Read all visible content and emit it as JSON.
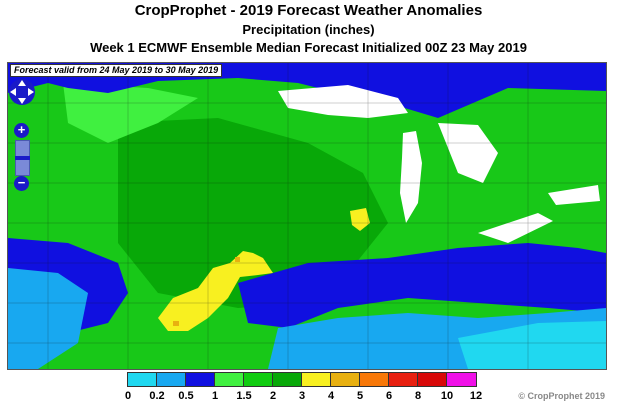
{
  "title": "CropProphet - 2019 Forecast Weather Anomalies",
  "subtitle": "Precipitation (inches)",
  "forecast_line": "Week 1 ECMWF Ensemble Median Forecast Initialized 00Z 23 May 2019",
  "valid_label": "Forecast valid from 24 May 2019 to 30 May 2019",
  "map_controls": {
    "zoom_in": "+",
    "zoom_out": "−",
    "zoom_level": 0.5
  },
  "legend": {
    "bins": [
      {
        "color": "#20d8f0"
      },
      {
        "color": "#18a8f0"
      },
      {
        "color": "#1010e0"
      },
      {
        "color": "#40f040"
      },
      {
        "color": "#10cc10"
      },
      {
        "color": "#08a808"
      },
      {
        "color": "#f8f020"
      },
      {
        "color": "#e8b010"
      },
      {
        "color": "#f87808"
      },
      {
        "color": "#e82010"
      },
      {
        "color": "#d80808"
      },
      {
        "color": "#f010e8"
      }
    ],
    "labels": [
      "0",
      "0.2",
      "0.5",
      "1",
      "1.5",
      "2",
      "3",
      "4",
      "5",
      "6",
      "8",
      "10",
      "12"
    ]
  },
  "copyright": "© CropProphet 2019"
}
